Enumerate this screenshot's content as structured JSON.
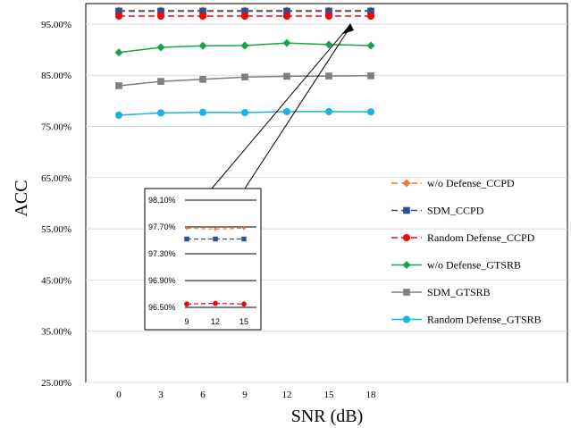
{
  "chart_data": {
    "type": "line",
    "xlabel": "SNR (dB)",
    "ylabel": "ACC",
    "x": [
      0,
      3,
      6,
      9,
      12,
      15,
      18
    ],
    "ylim": [
      0.25,
      0.99
    ],
    "yticks": [
      "25.00%",
      "35.00%",
      "45.00%",
      "55.00%",
      "65.00%",
      "75.00%",
      "85.00%",
      "95.00%"
    ],
    "grid": "horizontal",
    "legend_position": "right",
    "series": [
      {
        "name": "w/o Defense_CCPD",
        "values": [
          0.9768,
          0.9767,
          0.9768,
          0.9768,
          0.9767,
          0.9768,
          0.9768
        ],
        "color": "#ED7D31",
        "marker": "diamond",
        "dash": "dashed"
      },
      {
        "name": "SDM_CCPD",
        "values": [
          0.9752,
          0.9752,
          0.9752,
          0.9752,
          0.9752,
          0.9752,
          0.9752
        ],
        "color": "#2F4E8C",
        "marker": "square",
        "dash": "dashed"
      },
      {
        "name": "Random Defense_CCPD",
        "values": [
          0.9655,
          0.9656,
          0.9655,
          0.9655,
          0.9656,
          0.9655,
          0.9655
        ],
        "color": "#FF0000",
        "marker": "circle",
        "dash": "dashed"
      },
      {
        "name": "w/o Defense_GTSRB",
        "values": [
          0.8945,
          0.9045,
          0.9075,
          0.908,
          0.913,
          0.91,
          0.908
        ],
        "color": "#13A54A",
        "marker": "diamond",
        "dash": "solid"
      },
      {
        "name": "SDM_GTSRB",
        "values": [
          0.8295,
          0.838,
          0.842,
          0.8465,
          0.848,
          0.8485,
          0.849
        ],
        "color": "#7F7F7F",
        "marker": "square",
        "dash": "solid"
      },
      {
        "name": "Random Defense_GTSRB",
        "values": [
          0.772,
          0.7765,
          0.7775,
          0.777,
          0.779,
          0.779,
          0.7785
        ],
        "color": "#1BB2E6",
        "marker": "circle",
        "dash": "solid"
      }
    ],
    "inset": {
      "x": [
        9,
        12,
        15
      ],
      "yticks": [
        "98.10%",
        "97.70%",
        "97.30%",
        "96.90%",
        "96.50%"
      ],
      "ylim": [
        0.963,
        0.981
      ]
    }
  }
}
